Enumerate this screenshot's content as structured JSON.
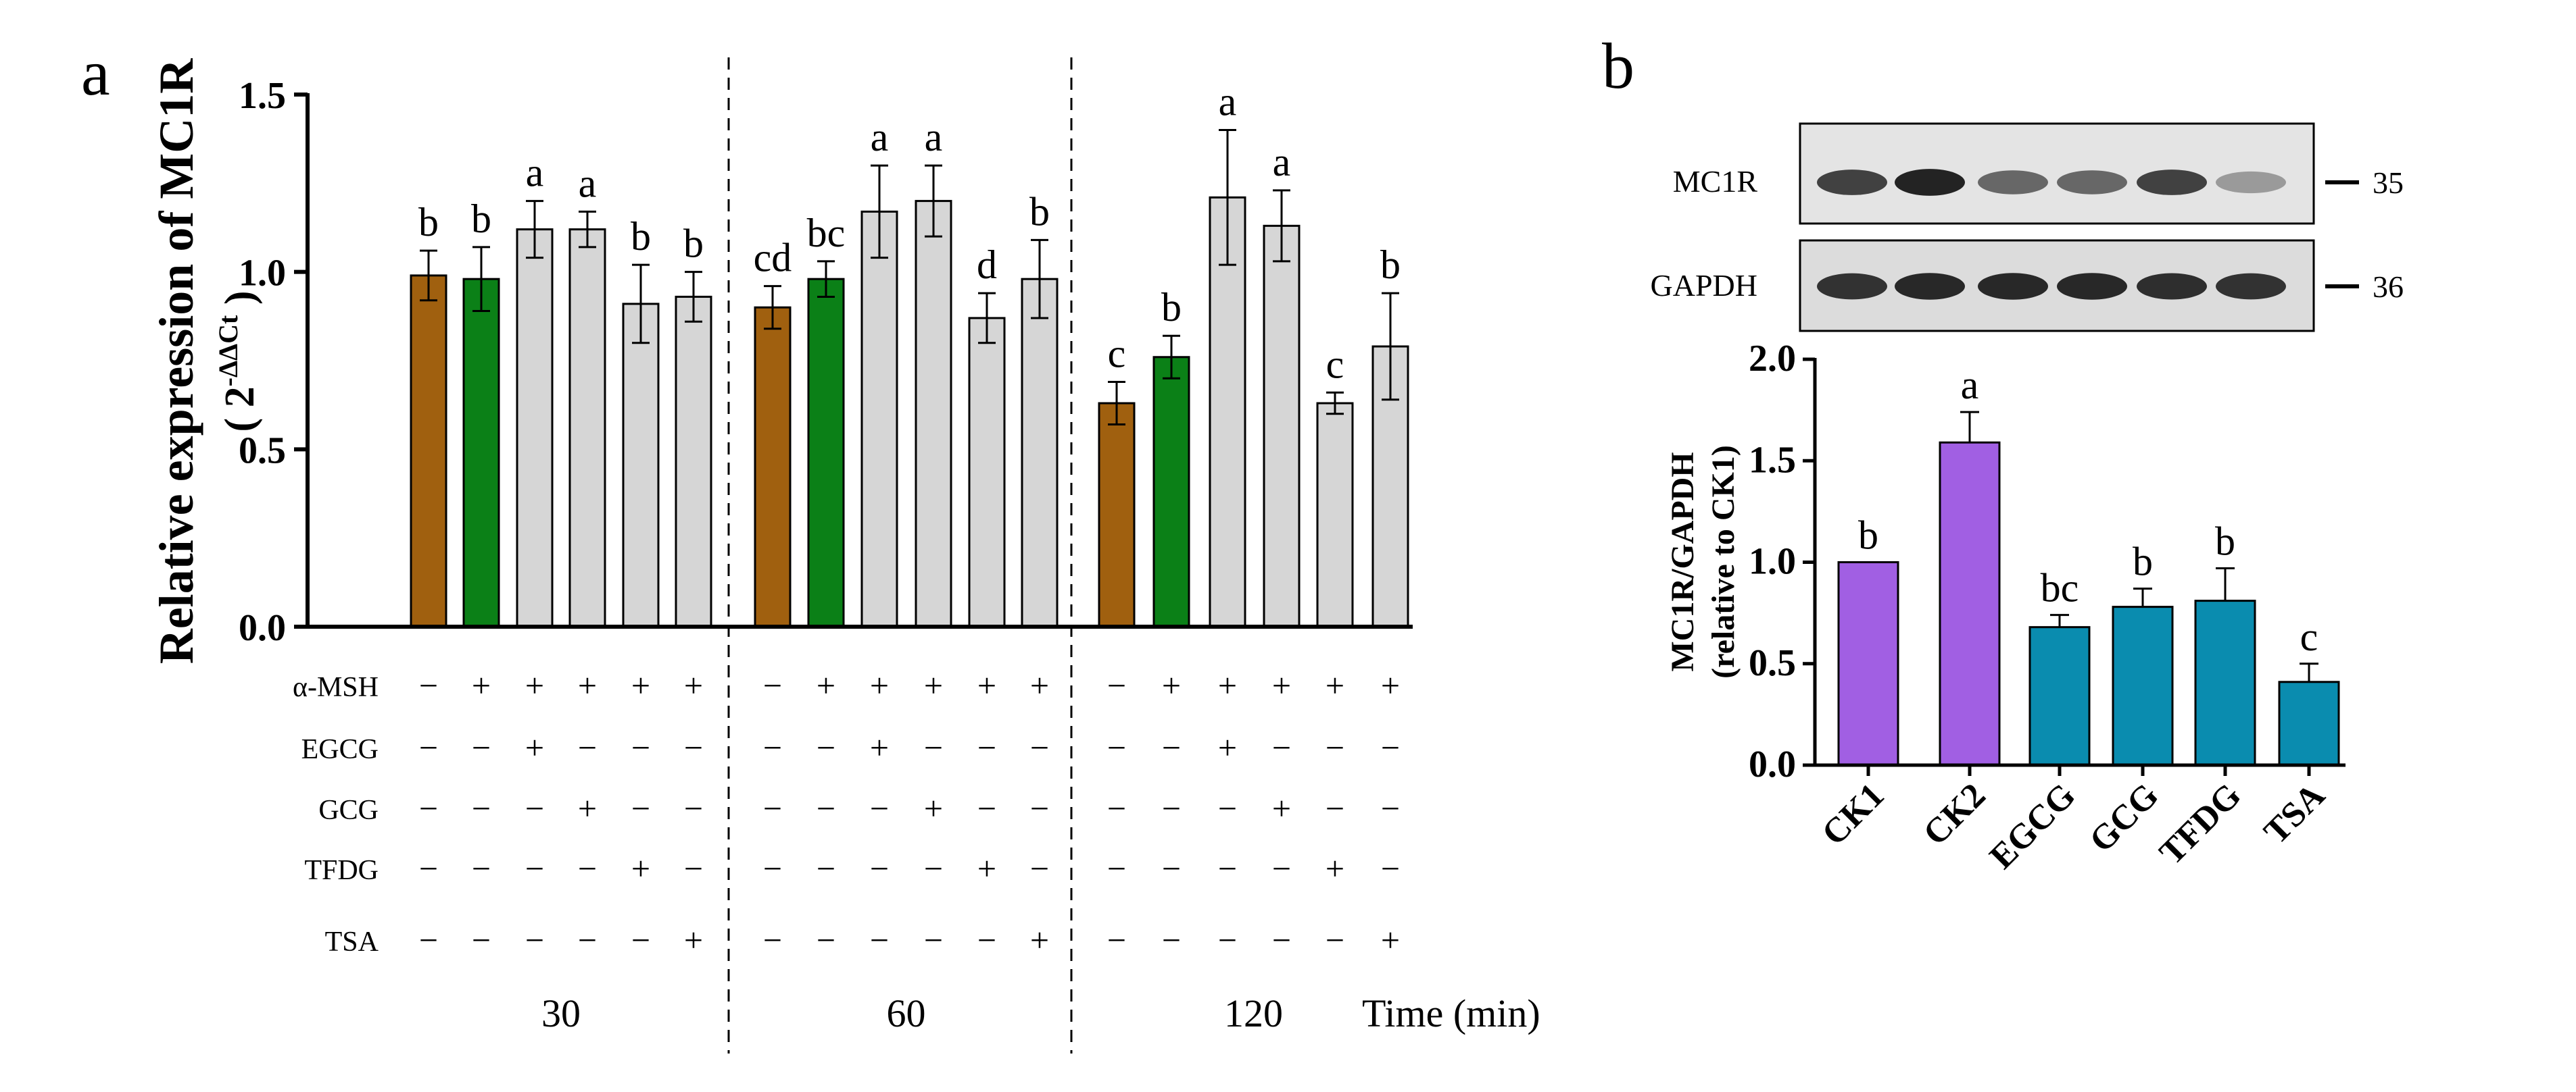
{
  "figure": {
    "panel_a_label": "a",
    "panel_b_label": "b"
  },
  "chart_data": [
    {
      "id": "panel-a",
      "type": "bar",
      "ylabel_line1": "Relative expression of MC1R",
      "ylabel_line2": "( 2",
      "ylabel_superscript": "-ΔΔCt",
      "ylabel_close": ")",
      "ylim": [
        0,
        1.5
      ],
      "yticks": [
        0.0,
        0.5,
        1.0,
        1.5
      ],
      "ytick_labels": [
        "0.0",
        "0.5",
        "1.0",
        "1.5"
      ],
      "colors": {
        "brown": "#A0600F",
        "green": "#0B8017",
        "gray": "#D6D6D6"
      },
      "treatment_rows": [
        "α-MSH",
        "EGCG",
        "GCG",
        "TFDG",
        "TSA"
      ],
      "time_label": "Time (min)",
      "groups": [
        {
          "time": "30",
          "bars": [
            {
              "value": 0.99,
              "error": 0.07,
              "letter": "b",
              "color": "brown",
              "signs": [
                "−",
                "−",
                "−",
                "−",
                "−"
              ]
            },
            {
              "value": 0.98,
              "error": 0.09,
              "letter": "b",
              "color": "green",
              "signs": [
                "+",
                "−",
                "−",
                "−",
                "−"
              ]
            },
            {
              "value": 1.12,
              "error": 0.08,
              "letter": "a",
              "color": "gray",
              "signs": [
                "+",
                "+",
                "−",
                "−",
                "−"
              ]
            },
            {
              "value": 1.12,
              "error": 0.05,
              "letter": "a",
              "color": "gray",
              "signs": [
                "+",
                "−",
                "+",
                "−",
                "−"
              ]
            },
            {
              "value": 0.91,
              "error": 0.11,
              "letter": "b",
              "color": "gray",
              "signs": [
                "+",
                "−",
                "−",
                "+",
                "−"
              ]
            },
            {
              "value": 0.93,
              "error": 0.07,
              "letter": "b",
              "color": "gray",
              "signs": [
                "+",
                "−",
                "−",
                "−",
                "+"
              ]
            }
          ]
        },
        {
          "time": "60",
          "bars": [
            {
              "value": 0.9,
              "error": 0.06,
              "letter": "cd",
              "color": "brown",
              "signs": [
                "−",
                "−",
                "−",
                "−",
                "−"
              ]
            },
            {
              "value": 0.98,
              "error": 0.05,
              "letter": "bc",
              "color": "green",
              "signs": [
                "+",
                "−",
                "−",
                "−",
                "−"
              ]
            },
            {
              "value": 1.17,
              "error": 0.13,
              "letter": "a",
              "color": "gray",
              "signs": [
                "+",
                "+",
                "−",
                "−",
                "−"
              ]
            },
            {
              "value": 1.2,
              "error": 0.1,
              "letter": "a",
              "color": "gray",
              "signs": [
                "+",
                "−",
                "+",
                "−",
                "−"
              ]
            },
            {
              "value": 0.87,
              "error": 0.07,
              "letter": "d",
              "color": "gray",
              "signs": [
                "+",
                "−",
                "−",
                "+",
                "−"
              ]
            },
            {
              "value": 0.98,
              "error": 0.11,
              "letter": "b",
              "color": "gray",
              "signs": [
                "+",
                "−",
                "−",
                "−",
                "+"
              ]
            }
          ]
        },
        {
          "time": "120",
          "bars": [
            {
              "value": 0.63,
              "error": 0.06,
              "letter": "c",
              "color": "brown",
              "signs": [
                "−",
                "−",
                "−",
                "−",
                "−"
              ]
            },
            {
              "value": 0.76,
              "error": 0.06,
              "letter": "b",
              "color": "green",
              "signs": [
                "+",
                "−",
                "−",
                "−",
                "−"
              ]
            },
            {
              "value": 1.21,
              "error": 0.19,
              "letter": "a",
              "color": "gray",
              "signs": [
                "+",
                "+",
                "−",
                "−",
                "−"
              ]
            },
            {
              "value": 1.13,
              "error": 0.1,
              "letter": "a",
              "color": "gray",
              "signs": [
                "+",
                "−",
                "+",
                "−",
                "−"
              ]
            },
            {
              "value": 0.63,
              "error": 0.03,
              "letter": "c",
              "color": "gray",
              "signs": [
                "+",
                "−",
                "−",
                "+",
                "−"
              ]
            },
            {
              "value": 0.79,
              "error": 0.15,
              "letter": "b",
              "color": "gray",
              "signs": [
                "+",
                "−",
                "−",
                "−",
                "+"
              ]
            }
          ]
        }
      ]
    },
    {
      "id": "panel-b",
      "type": "bar",
      "ylabel_line1": "MC1R/GAPDH",
      "ylabel_line2": "(relative to CK1)",
      "ylim": [
        0,
        2.0
      ],
      "yticks": [
        0.0,
        0.5,
        1.0,
        1.5,
        2.0
      ],
      "ytick_labels": [
        "0.0",
        "0.5",
        "1.0",
        "1.5",
        "2.0"
      ],
      "categories": [
        "CK1",
        "CK2",
        "EGCG",
        "GCG",
        "TFDG",
        "TSA"
      ],
      "values": [
        1.0,
        1.59,
        0.68,
        0.78,
        0.81,
        0.41
      ],
      "errors": [
        0.0,
        0.15,
        0.06,
        0.09,
        0.16,
        0.09
      ],
      "letters": [
        "b",
        "a",
        "bc",
        "b",
        "b",
        "c"
      ],
      "bar_colors": [
        "#A15FE3",
        "#A15FE3",
        "#0A8CAF",
        "#0A8CAF",
        "#0A8CAF",
        "#0A8CAF"
      ],
      "blot": {
        "rows": [
          {
            "protein": "MC1R",
            "kda": "35",
            "intensity": [
              0.82,
              0.98,
              0.62,
              0.62,
              0.82,
              0.35
            ]
          },
          {
            "protein": "GAPDH",
            "kda": "36",
            "intensity": [
              0.9,
              0.95,
              0.95,
              0.95,
              0.92,
              0.9
            ]
          }
        ]
      }
    }
  ]
}
